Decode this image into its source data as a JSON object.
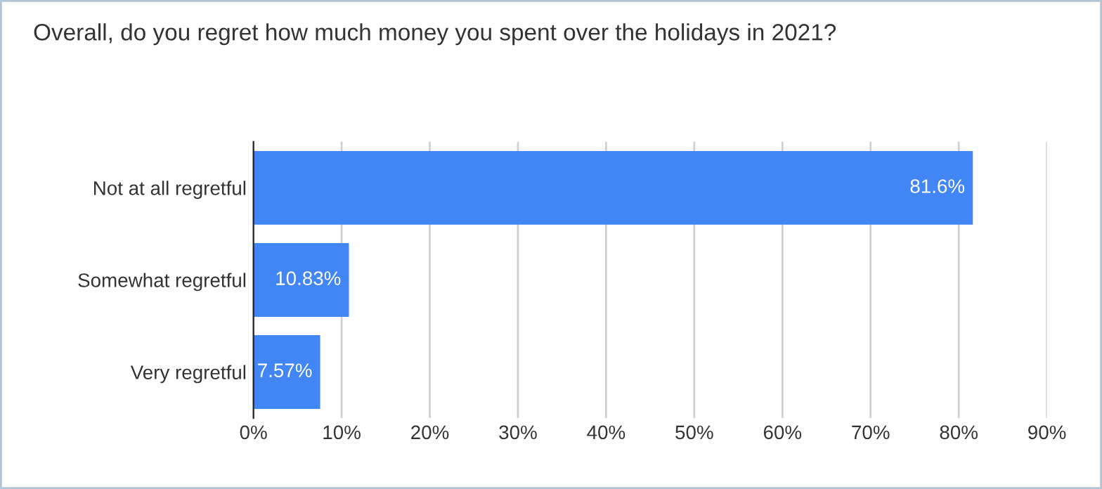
{
  "chart_data": {
    "type": "bar",
    "orientation": "horizontal",
    "title": "Overall, do you regret how much money you spent over the holidays in 2021?",
    "categories": [
      "Not at all regretful",
      "Somewhat regretful",
      "Very regretful"
    ],
    "values": [
      81.6,
      10.83,
      7.57
    ],
    "value_labels": [
      "81.6%",
      "10.83%",
      "7.57%"
    ],
    "color": "#4285f4",
    "xlim": [
      0,
      90
    ],
    "xticks": [
      {
        "value": 0,
        "label": "0%"
      },
      {
        "value": 10,
        "label": "10%"
      },
      {
        "value": 20,
        "label": "20%"
      },
      {
        "value": 30,
        "label": "30%"
      },
      {
        "value": 40,
        "label": "40%"
      },
      {
        "value": 50,
        "label": "50%"
      },
      {
        "value": 60,
        "label": "60%"
      },
      {
        "value": 70,
        "label": "70%"
      },
      {
        "value": 80,
        "label": "80%"
      },
      {
        "value": 90,
        "label": "90%"
      }
    ],
    "grid": "x",
    "legend": false
  }
}
